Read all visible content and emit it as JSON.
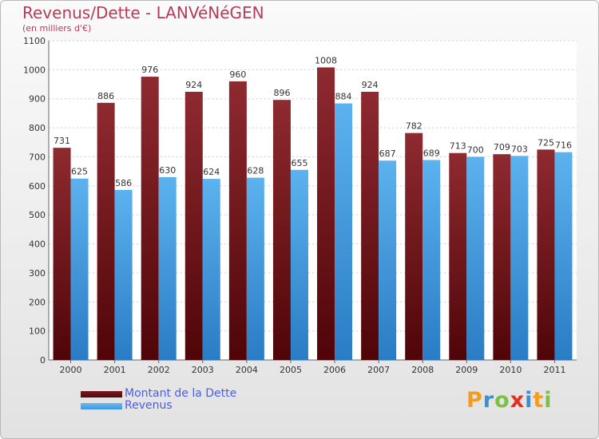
{
  "title": "Revenus/Dette - LANVéNéGEN",
  "subtitle": "(en milliers d'€)",
  "colors": {
    "dette": "#7a1a1f",
    "revenus": "#3d98e0",
    "title": "#b43c5a",
    "legend_text": "#4a5ee8"
  },
  "legend": {
    "dette_label": "Montant de la Dette",
    "revenus_label": "Revenus"
  },
  "logo": {
    "letters": [
      "P",
      "r",
      "o",
      "x",
      "i",
      "t",
      "i"
    ],
    "colors": [
      "#f39c1f",
      "#3a8fd8",
      "#7cc242",
      "#e0301e",
      "#3a8fd8",
      "#f39c1f",
      "#7cc242"
    ]
  },
  "chart_data": {
    "type": "bar",
    "categories": [
      "2000",
      "2001",
      "2002",
      "2003",
      "2004",
      "2005",
      "2006",
      "2007",
      "2008",
      "2009",
      "2010",
      "2011"
    ],
    "series": [
      {
        "name": "Montant de la Dette",
        "values": [
          731,
          886,
          976,
          924,
          960,
          896,
          1008,
          924,
          782,
          713,
          709,
          725
        ]
      },
      {
        "name": "Revenus",
        "values": [
          625,
          586,
          630,
          624,
          628,
          655,
          884,
          687,
          689,
          700,
          703,
          716
        ]
      }
    ],
    "ylim": [
      0,
      1100
    ],
    "yticks": [
      0,
      100,
      200,
      300,
      400,
      500,
      600,
      700,
      800,
      900,
      1000,
      1100
    ],
    "grid": true,
    "legend_position": "bottom-left"
  }
}
